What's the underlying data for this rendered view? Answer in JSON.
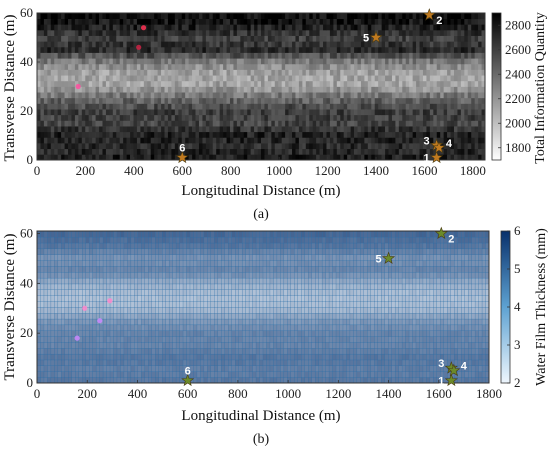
{
  "chart_data": [
    {
      "type": "heatmap",
      "panel_label": "(a)",
      "xlabel": "Longitudinal Distance (m)",
      "ylabel": "Transverse  Distance (m)",
      "xlim": [
        0,
        1850
      ],
      "ylim": [
        0,
        60
      ],
      "x_ticks": [
        "0",
        "200",
        "400",
        "600",
        "800",
        "1000",
        "1200",
        "1400",
        "1600",
        "1800"
      ],
      "y_ticks": [
        "0",
        "20",
        "40",
        "60"
      ],
      "colorbar": {
        "label": "Total Information Quantity",
        "range": [
          1700,
          2900
        ],
        "ticks": [
          "1800",
          "2000",
          "2200",
          "2400",
          "2600",
          "2800"
        ],
        "colormap": "gray-reversed",
        "colors": [
          "#ffffff",
          "#000000"
        ]
      },
      "row_profile": {
        "y_centers": [
          0,
          5,
          10,
          15,
          20,
          25,
          30,
          35,
          40,
          45,
          50,
          55,
          60
        ],
        "mean_values": [
          2780,
          2700,
          2760,
          2580,
          2620,
          2420,
          2150,
          2120,
          2300,
          2700,
          2600,
          2780,
          2860
        ]
      },
      "markers": [
        {
          "label": "1",
          "x": 1650,
          "y": 1
        },
        {
          "label": "2",
          "x": 1620,
          "y": 60
        },
        {
          "label": "3",
          "x": 1650,
          "y": 6
        },
        {
          "label": "4",
          "x": 1660,
          "y": 5
        },
        {
          "label": "5",
          "x": 1400,
          "y": 50
        },
        {
          "label": "6",
          "x": 600,
          "y": 1
        }
      ],
      "other_points": [
        {
          "x": 170,
          "y": 30,
          "color": "#ff4fa0"
        },
        {
          "x": 440,
          "y": 54,
          "color": "#ff3355"
        },
        {
          "x": 420,
          "y": 46,
          "color": "#cc2244"
        }
      ]
    },
    {
      "type": "heatmap",
      "panel_label": "(b)",
      "xlabel": "Longitudinal Distance (m)",
      "ylabel": "Transverse  Distance (m)",
      "xlim": [
        0,
        1800
      ],
      "ylim": [
        0,
        61
      ],
      "x_ticks": [
        "0",
        "200",
        "400",
        "600",
        "800",
        "1000",
        "1200",
        "1400",
        "1600",
        "1800"
      ],
      "y_ticks": [
        "0",
        "20",
        "40",
        "60"
      ],
      "colorbar": {
        "label": "Water Film Thickness (mm)",
        "range": [
          2,
          6
        ],
        "ticks": [
          "2",
          "3",
          "4",
          "5",
          "6"
        ],
        "colormap": "blues",
        "colors": [
          "#eef6fd",
          "#08306b"
        ]
      },
      "row_profile": {
        "y_centers": [
          0,
          5,
          10,
          15,
          20,
          25,
          30,
          35,
          40,
          45,
          50,
          55,
          60
        ],
        "mean_values": [
          4.6,
          4.4,
          4.6,
          4.3,
          4.3,
          3.9,
          3.2,
          3.1,
          3.4,
          4.3,
          4.0,
          4.6,
          4.9
        ]
      },
      "markers": [
        {
          "label": "1",
          "x": 1650,
          "y": 1
        },
        {
          "label": "2",
          "x": 1610,
          "y": 60
        },
        {
          "label": "3",
          "x": 1650,
          "y": 6
        },
        {
          "label": "4",
          "x": 1660,
          "y": 5
        },
        {
          "label": "5",
          "x": 1400,
          "y": 50
        },
        {
          "label": "6",
          "x": 600,
          "y": 1
        }
      ],
      "other_points": [
        {
          "x": 190,
          "y": 30,
          "color": "#ff88cc"
        },
        {
          "x": 290,
          "y": 33,
          "color": "#ff88cc"
        },
        {
          "x": 250,
          "y": 25,
          "color": "#cc88ff"
        },
        {
          "x": 160,
          "y": 18,
          "color": "#cc88ff"
        }
      ]
    }
  ]
}
